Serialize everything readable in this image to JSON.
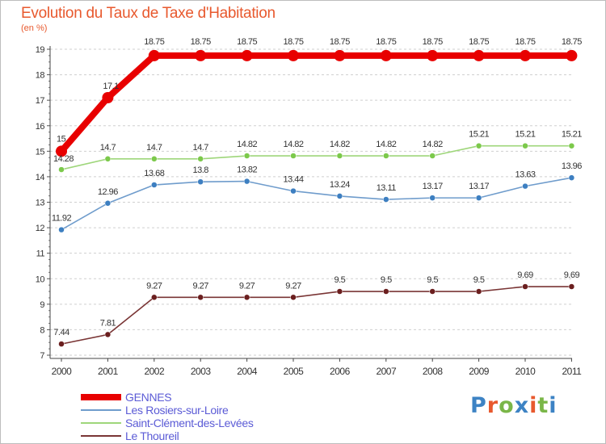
{
  "title": "Evolution du Taux de Taxe d'Habitation",
  "subtitle": "(en %)",
  "logo": {
    "text": "Proxiti",
    "colors": [
      "#3d83c4",
      "#e8592e",
      "#7ab648",
      "#3d83c4",
      "#e8592e",
      "#7ab648",
      "#3d83c4"
    ]
  },
  "chart_data": {
    "type": "line",
    "x": [
      "2000",
      "2001",
      "2002",
      "2003",
      "2004",
      "2005",
      "2006",
      "2007",
      "2008",
      "2009",
      "2010",
      "2011"
    ],
    "ylim": [
      7,
      19
    ],
    "yticks": [
      "7",
      "8",
      "9",
      "10",
      "11",
      "12",
      "13",
      "14",
      "15",
      "16",
      "17",
      "18",
      "19"
    ],
    "grid": "horizontal dashed",
    "legend_position": "bottom-left",
    "series": [
      {
        "name": "GENNES",
        "color": "#e80000",
        "style": "thick",
        "values": [
          15,
          17.1,
          18.75,
          18.75,
          18.75,
          18.75,
          18.75,
          18.75,
          18.75,
          18.75,
          18.75,
          18.75
        ],
        "labels": [
          "15",
          "17.1",
          "18.75",
          "18.75",
          "18.75",
          "18.75",
          "18.75",
          "18.75",
          "18.75",
          "18.75",
          "18.75",
          "18.75"
        ]
      },
      {
        "name": "Les Rosiers-sur-Loire",
        "color": "#6f9ccc",
        "marker": "#3d7fc1",
        "style": "thin",
        "values": [
          11.92,
          12.96,
          13.68,
          13.8,
          13.82,
          13.44,
          13.24,
          13.11,
          13.17,
          13.17,
          13.63,
          13.96
        ],
        "labels": [
          "11.92",
          "12.96",
          "13.68",
          "13.8",
          "13.82",
          "13.44",
          "13.24",
          "13.11",
          "13.17",
          "13.17",
          "13.63",
          "13.96"
        ]
      },
      {
        "name": "Saint-Clément-des-Levées",
        "color": "#9ed67a",
        "marker": "#7cc94b",
        "style": "thin",
        "values": [
          14.28,
          14.7,
          14.7,
          14.7,
          14.82,
          14.82,
          14.82,
          14.82,
          14.82,
          15.21,
          15.21,
          15.21
        ],
        "labels": [
          "14.28",
          "14.7",
          "14.7",
          "14.7",
          "14.82",
          "14.82",
          "14.82",
          "14.82",
          "14.82",
          "15.21",
          "15.21",
          "15.21"
        ]
      },
      {
        "name": "Le Thoureil",
        "color": "#7a3535",
        "marker": "#6b1f1f",
        "style": "thin",
        "values": [
          7.44,
          7.81,
          9.27,
          9.27,
          9.27,
          9.27,
          9.5,
          9.5,
          9.5,
          9.5,
          9.69,
          9.69
        ],
        "labels": [
          "7.44",
          "7.81",
          "9.27",
          "9.27",
          "9.27",
          "9.27",
          "9.5",
          "9.5",
          "9.5",
          "9.5",
          "9.69",
          "9.69"
        ]
      }
    ]
  }
}
